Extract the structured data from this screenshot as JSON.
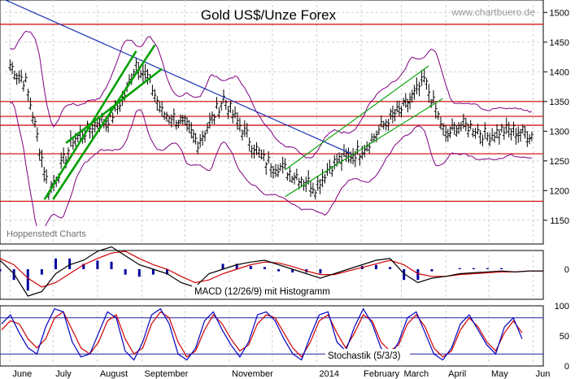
{
  "header": {
    "title": "Gold US$/Unze Forex",
    "watermark": "www.chartbuero.de",
    "source": "Hoppenstedt Charts"
  },
  "colors": {
    "background": "#ffffff",
    "grid": "#cfcfcf",
    "price": "#000000",
    "bollinger": "#800080",
    "resistance": "#d00000",
    "trend_down": "#1a33b3",
    "trend_up": "#00a000",
    "macd_line": "#000000",
    "macd_signal": "#d00000",
    "macd_hist": "#0000a0",
    "stoch_k": "#0000c0",
    "stoch_d": "#d00000",
    "stoch_ref": "#2020a0"
  },
  "chart_data": [
    {
      "type": "line",
      "panel": "price",
      "title": "Gold US$/Unze Forex",
      "x_labels": [
        "June",
        "July",
        "August",
        "September",
        "November",
        "2014",
        "February",
        "March",
        "April",
        "May",
        "Jun"
      ],
      "y_ticks": [
        1150,
        1200,
        1250,
        1300,
        1350,
        1400,
        1450,
        1500
      ],
      "ylim": [
        1110,
        1510
      ],
      "grid": true,
      "series": [
        {
          "role": "price",
          "x": [
            "2013-06-01",
            "2013-06-12",
            "2013-06-20",
            "2013-06-28",
            "2013-07-05",
            "2013-07-15",
            "2013-07-25",
            "2013-08-01",
            "2013-08-10",
            "2013-08-20",
            "2013-08-28",
            "2013-09-05",
            "2013-09-15",
            "2013-09-25",
            "2013-10-01",
            "2013-10-10",
            "2013-10-20",
            "2013-10-28",
            "2013-11-05",
            "2013-11-15",
            "2013-11-25",
            "2013-12-05",
            "2013-12-18",
            "2013-12-31",
            "2014-01-10",
            "2014-01-20",
            "2014-01-31",
            "2014-02-10",
            "2014-02-20",
            "2014-03-01",
            "2014-03-10",
            "2014-03-17",
            "2014-03-25",
            "2014-04-01",
            "2014-04-10",
            "2014-04-20",
            "2014-04-30",
            "2014-05-10",
            "2014-05-20",
            "2014-05-31"
          ],
          "y": [
            1410,
            1380,
            1290,
            1200,
            1230,
            1285,
            1300,
            1315,
            1320,
            1360,
            1415,
            1390,
            1330,
            1320,
            1310,
            1280,
            1320,
            1355,
            1320,
            1285,
            1250,
            1240,
            1225,
            1205,
            1240,
            1255,
            1265,
            1290,
            1320,
            1335,
            1360,
            1385,
            1335,
            1290,
            1310,
            1305,
            1290,
            1300,
            1300,
            1292
          ]
        }
      ],
      "horizontal_lines": [
        1480,
        1350,
        1325,
        1310,
        1262,
        1182
      ],
      "trendlines": [
        {
          "role": "downtrend",
          "x": [
            "2013-05-25",
            "2014-01-25"
          ],
          "y": [
            1525,
            1262
          ]
        },
        {
          "role": "uptrend-channel",
          "x": [
            "2013-06-25",
            "2013-08-28"
          ],
          "y": [
            1185,
            1435
          ]
        },
        {
          "role": "uptrend-channel",
          "x": [
            "2013-07-01",
            "2013-09-10"
          ],
          "y": [
            1185,
            1445
          ]
        },
        {
          "role": "uptrend-channel",
          "x": [
            "2013-07-10",
            "2013-09-15"
          ],
          "y": [
            1280,
            1405
          ]
        },
        {
          "role": "uptrend-channel",
          "x": [
            "2013-12-10",
            "2014-03-20"
          ],
          "y": [
            1235,
            1410
          ]
        },
        {
          "role": "uptrend-channel",
          "x": [
            "2013-12-10",
            "2014-03-30"
          ],
          "y": [
            1190,
            1355
          ]
        }
      ]
    },
    {
      "type": "line",
      "panel": "macd",
      "title": "MACD (12/26/9) mit Histogramm",
      "y_ticks": [
        0
      ],
      "series": [
        {
          "role": "macd",
          "values": [
            10,
            -5,
            -30,
            -25,
            -5,
            5,
            10,
            20,
            25,
            15,
            5,
            0,
            -5,
            -15,
            -20,
            -5,
            0,
            5,
            8,
            10,
            5,
            0,
            -5,
            -10,
            -5,
            0,
            5,
            10,
            12,
            -5,
            -15,
            -10,
            -8,
            -5,
            -4,
            -3,
            -2,
            -3,
            -2,
            -2
          ]
        },
        {
          "role": "signal",
          "values": [
            12,
            5,
            -10,
            -20,
            -15,
            -5,
            5,
            12,
            18,
            20,
            12,
            5,
            0,
            -8,
            -15,
            -12,
            -5,
            0,
            5,
            8,
            7,
            3,
            -2,
            -6,
            -6,
            -2,
            2,
            6,
            10,
            5,
            -5,
            -8,
            -8,
            -6,
            -5,
            -4,
            -3,
            -3,
            -2,
            -2
          ]
        }
      ]
    },
    {
      "type": "line",
      "panel": "stochastic",
      "title": "Stochastik (5/3/3)",
      "y_ticks": [
        0,
        50,
        100
      ],
      "ylim": [
        0,
        100
      ],
      "reference_lines": [
        80,
        20
      ],
      "series": [
        {
          "role": "k",
          "values": [
            70,
            85,
            55,
            30,
            20,
            65,
            95,
            90,
            40,
            15,
            20,
            55,
            90,
            80,
            25,
            10,
            40,
            85,
            95,
            70,
            20,
            10,
            30,
            75,
            90,
            60,
            35,
            15,
            40,
            85,
            90,
            75,
            45,
            20,
            10,
            50,
            85,
            90,
            40,
            25,
            65,
            95,
            70,
            30,
            15,
            40,
            80,
            90,
            55,
            20,
            10,
            30,
            70,
            85,
            60,
            35,
            20,
            65,
            80,
            45
          ]
        },
        {
          "role": "d",
          "values": [
            60,
            75,
            70,
            45,
            30,
            45,
            80,
            90,
            60,
            30,
            20,
            40,
            75,
            85,
            45,
            20,
            30,
            70,
            90,
            80,
            40,
            15,
            25,
            60,
            85,
            70,
            45,
            25,
            35,
            70,
            85,
            80,
            55,
            30,
            15,
            40,
            75,
            85,
            55,
            30,
            55,
            85,
            75,
            40,
            25,
            35,
            70,
            85,
            65,
            30,
            15,
            25,
            60,
            80,
            65,
            40,
            25,
            55,
            75,
            55
          ]
        }
      ]
    }
  ]
}
